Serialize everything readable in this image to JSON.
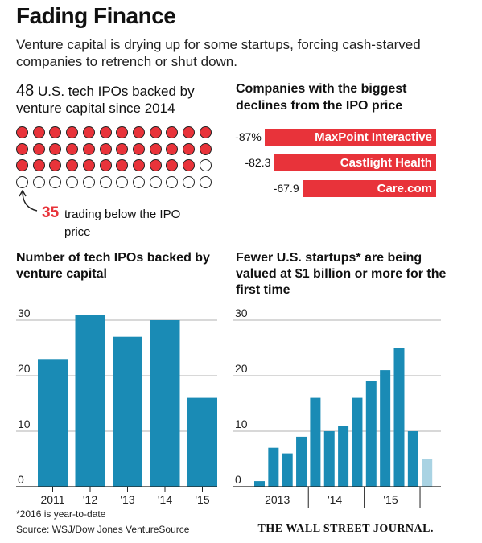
{
  "header": {
    "title": "Fading Finance",
    "subtitle": "Venture capital is drying up for some startups, forcing cash-starved companies to retrench or shut down."
  },
  "ipo_dots": {
    "count_label": "48",
    "heading": "U.S. tech IPOs backed by venture capital since 2014",
    "total": 48,
    "below": 35,
    "below_label": "35",
    "below_text": "trading below the IPO price",
    "colors": {
      "below": "#e8333a",
      "other": "#ffffff"
    }
  },
  "declines": {
    "heading": "Companies with the biggest declines from the IPO price",
    "items": [
      {
        "value": -87,
        "label": "-87%",
        "company": "MaxPoint Interactive"
      },
      {
        "value": -82.3,
        "label": "-82.3",
        "company": "Castlight Health"
      },
      {
        "value": -67.9,
        "label": "-67.9",
        "company": "Care.com"
      }
    ],
    "color": "#e8333a"
  },
  "chart_data": [
    {
      "type": "bar",
      "title": "Number of tech IPOs backed by venture capital",
      "categories": [
        "2011",
        "'12",
        "'13",
        "'14",
        "'15"
      ],
      "values": [
        23,
        31,
        27,
        30,
        16
      ],
      "ylim": [
        0,
        30
      ],
      "yticks": [
        "30",
        "20",
        "10",
        "0"
      ],
      "grid": true,
      "color": "#1a8bb5"
    },
    {
      "type": "bar",
      "title": "Fewer U.S. startups* are being valued at $1 billion or more for the first time",
      "quarters": [
        "2013 Q1",
        "2013 Q2",
        "2013 Q3",
        "2013 Q4",
        "2014 Q1",
        "2014 Q2",
        "2014 Q3",
        "2014 Q4",
        "2015 Q1",
        "2015 Q2",
        "2015 Q3",
        "2015 Q4",
        "2016 Q1"
      ],
      "values": [
        1,
        7,
        6,
        9,
        16,
        10,
        11,
        16,
        19,
        21,
        25,
        10,
        5
      ],
      "year_labels": [
        "2013",
        "'14",
        "'15"
      ],
      "ylim": [
        0,
        30
      ],
      "yticks": [
        "30",
        "20",
        "10",
        "0"
      ],
      "grid": true,
      "color": "#1a8bb5",
      "partial_color": "#a9d3e3"
    }
  ],
  "footer": {
    "footnote": "*2016 is year-to-date",
    "source": "Source: WSJ/Dow Jones VentureSource",
    "brand": "THE WALL STREET JOURNAL."
  }
}
